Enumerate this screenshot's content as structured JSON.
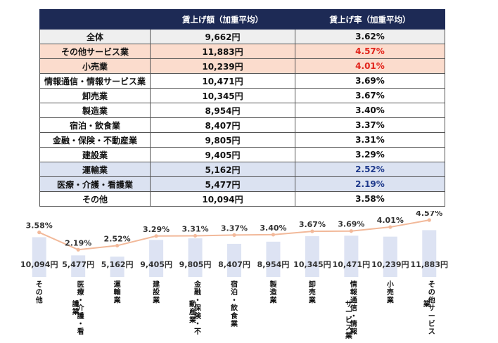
{
  "table": {
    "headers": [
      "",
      "賃上げ額（加重平均）",
      "賃上げ率（加重平均）"
    ],
    "rows": [
      {
        "industry": "全体",
        "amount": "9,662円",
        "rate": "3.62%",
        "highlight": "total"
      },
      {
        "industry": "その他サービス業",
        "amount": "11,883円",
        "rate": "4.57%",
        "highlight": "high"
      },
      {
        "industry": "小売業",
        "amount": "10,239円",
        "rate": "4.01%",
        "highlight": "high"
      },
      {
        "industry": "情報通信・情報サービス業",
        "amount": "10,471円",
        "rate": "3.69%",
        "highlight": ""
      },
      {
        "industry": "卸売業",
        "amount": "10,345円",
        "rate": "3.67%",
        "highlight": ""
      },
      {
        "industry": "製造業",
        "amount": "8,954円",
        "rate": "3.40%",
        "highlight": ""
      },
      {
        "industry": "宿泊・飲食業",
        "amount": "8,407円",
        "rate": "3.37%",
        "highlight": ""
      },
      {
        "industry": "金融・保険・不動産業",
        "amount": "9,805円",
        "rate": "3.31%",
        "highlight": ""
      },
      {
        "industry": "建設業",
        "amount": "9,405円",
        "rate": "3.29%",
        "highlight": ""
      },
      {
        "industry": "運輸業",
        "amount": "5,162円",
        "rate": "2.52%",
        "highlight": "low"
      },
      {
        "industry": "医療・介護・看護業",
        "amount": "5,477円",
        "rate": "2.19%",
        "highlight": "low"
      },
      {
        "industry": "その他",
        "amount": "10,094円",
        "rate": "3.58%",
        "highlight": ""
      }
    ]
  },
  "colors": {
    "header_bg": "#1d2a55",
    "total_bg": "#efefef",
    "high_bg": "#fbdccd",
    "low_bg": "#dbe2f1",
    "high_text": "#e2231a",
    "low_text": "#1f3a8c",
    "bar": "#dde3f3",
    "line": "#f2b99a"
  },
  "chart_data": {
    "type": "bar",
    "categories": [
      "その他",
      "医療・介護・看護業",
      "運輸業",
      "建設業",
      "金融・保険・不動産業",
      "宿泊・飲食業",
      "製造業",
      "卸売業",
      "情報通信・情報サービス業",
      "小売業",
      "その他サービス業"
    ],
    "category_label_lines": [
      [
        "その他"
      ],
      [
        "医療・介護・看",
        "護業"
      ],
      [
        "運輸業"
      ],
      [
        "建設業"
      ],
      [
        "金融・保険・不",
        "動産業"
      ],
      [
        "宿泊・飲食業"
      ],
      [
        "製造業"
      ],
      [
        "卸売業"
      ],
      [
        "情報通信・情報",
        "サービス業"
      ],
      [
        "小売業"
      ],
      [
        "その他サービス",
        "業"
      ]
    ],
    "series": [
      {
        "type": "bar",
        "values": [
          10094,
          5477,
          5162,
          9405,
          9805,
          8407,
          8954,
          10345,
          10471,
          10239,
          11883
        ],
        "labels": [
          "10,094円",
          "5,477円",
          "5,162円",
          "9,405円",
          "9,805円",
          "8,407円",
          "8,954円",
          "10,345円",
          "10,471円",
          "10,239円",
          "11,883円"
        ]
      },
      {
        "type": "line",
        "values": [
          3.58,
          2.19,
          2.52,
          3.29,
          3.31,
          3.37,
          3.4,
          3.67,
          3.69,
          4.01,
          4.57
        ],
        "labels": [
          "3.58%",
          "2.19%",
          "2.52%",
          "3.29%",
          "3.31%",
          "3.37%",
          "3.40%",
          "3.67%",
          "3.69%",
          "4.01%",
          "4.57%"
        ]
      }
    ],
    "bar_ylim": [
      0,
      12500
    ],
    "line_ylim": [
      0,
      5.2
    ],
    "grid": false,
    "legend": "none"
  }
}
